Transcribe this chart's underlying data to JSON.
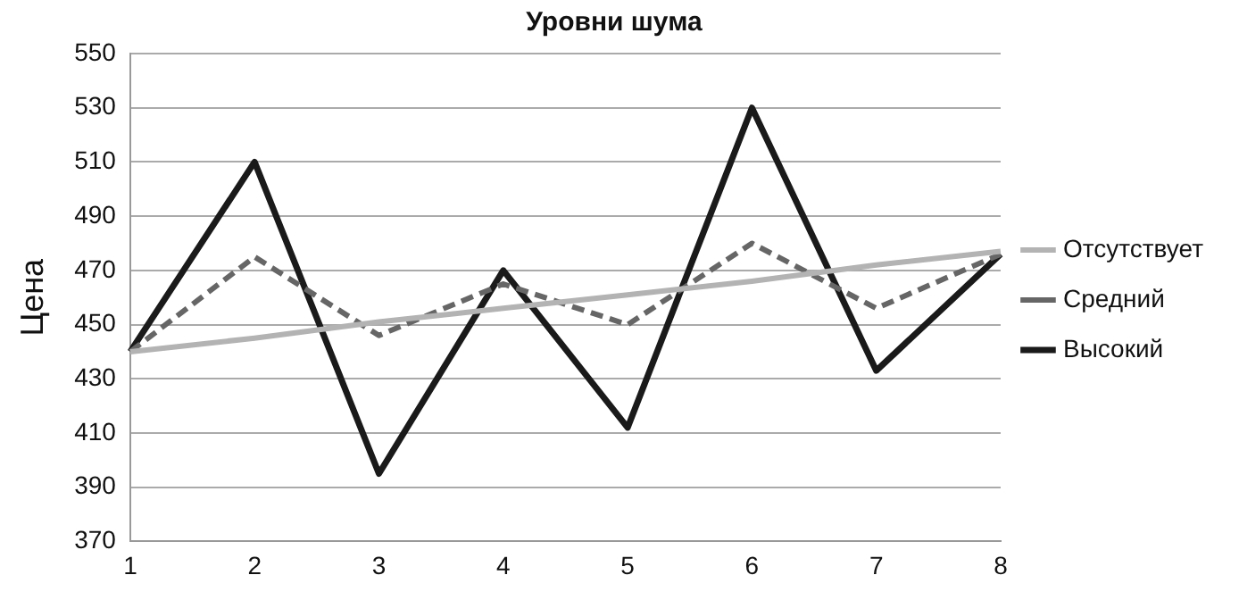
{
  "chart_data": {
    "type": "line",
    "title": "Уровни шума",
    "ylabel": "Цена",
    "categories": [
      "1",
      "2",
      "3",
      "4",
      "5",
      "6",
      "7",
      "8"
    ],
    "series": [
      {
        "name": "Отсутствует",
        "color": "#b3b3b3",
        "values": [
          440,
          445,
          451,
          456,
          461,
          466,
          472,
          477
        ]
      },
      {
        "name": "Средний",
        "color": "#666666",
        "line_style": "dashed",
        "values": [
          440,
          475,
          446,
          465,
          450,
          480,
          456,
          476
        ]
      },
      {
        "name": "Высокий",
        "color": "#1a1a1a",
        "values": [
          440,
          510,
          395,
          470,
          412,
          530,
          433,
          476
        ]
      }
    ],
    "ylim": [
      370,
      550
    ],
    "yticks": [
      370,
      390,
      410,
      430,
      450,
      470,
      490,
      510,
      530,
      550
    ],
    "grid": "y",
    "legend": "right",
    "marker": "none",
    "line_style": "solid"
  }
}
